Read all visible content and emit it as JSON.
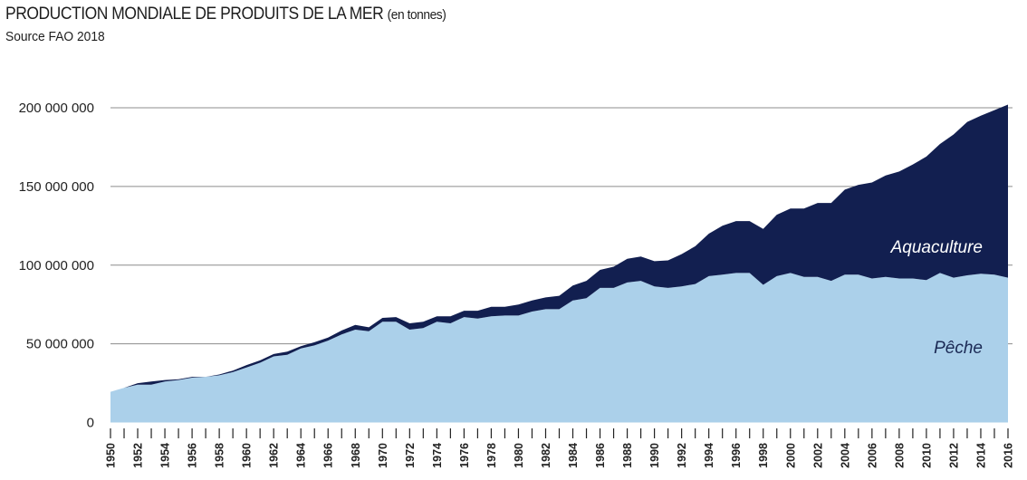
{
  "header": {
    "title": "PRODUCTION MONDIALE DE PRODUITS DE LA MER",
    "title_unit": "(en tonnes)",
    "subtitle": "Source FAO 2018"
  },
  "chart_data": {
    "type": "area",
    "stacked": true,
    "title": "PRODUCTION MONDIALE DE PRODUITS DE LA MER (en tonnes)",
    "subtitle": "Source FAO 2018",
    "xlabel": "",
    "ylabel": "",
    "ylim": [
      0,
      200000000
    ],
    "xlim": [
      1950,
      2016
    ],
    "yticks": [
      0,
      50000000,
      100000000,
      150000000,
      200000000
    ],
    "ytick_labels": [
      "0",
      "50 000 000",
      "100 000 000",
      "150 000 000",
      "200 000 000"
    ],
    "grid": "horizontal",
    "legend": "inline-labels",
    "x": [
      1950,
      1951,
      1952,
      1953,
      1954,
      1955,
      1956,
      1957,
      1958,
      1959,
      1960,
      1961,
      1962,
      1963,
      1964,
      1965,
      1966,
      1967,
      1968,
      1969,
      1970,
      1971,
      1972,
      1973,
      1974,
      1975,
      1976,
      1977,
      1978,
      1979,
      1980,
      1981,
      1982,
      1983,
      1984,
      1985,
      1986,
      1987,
      1988,
      1989,
      1990,
      1991,
      1992,
      1993,
      1994,
      1995,
      1996,
      1997,
      1998,
      1999,
      2000,
      2001,
      2002,
      2003,
      2004,
      2005,
      2006,
      2007,
      2008,
      2009,
      2010,
      2011,
      2012,
      2013,
      2014,
      2015,
      2016
    ],
    "xtick_labels": [
      "1950",
      "1952",
      "1954",
      "1956",
      "1958",
      "1960",
      "1962",
      "1964",
      "1966",
      "1968",
      "1970",
      "1972",
      "1974",
      "1976",
      "1978",
      "1980",
      "1982",
      "1984",
      "1986",
      "1988",
      "1990",
      "1992",
      "1994",
      "1996",
      "1998",
      "2000",
      "2002",
      "2004",
      "2006",
      "2008",
      "2010",
      "2012",
      "2014",
      "2016"
    ],
    "series": [
      {
        "name": "Pêche",
        "color": "#abd0ea",
        "label_color": "#1b2a55",
        "values": [
          19500000,
          22000000,
          24000000,
          24000000,
          26000000,
          27000000,
          28500000,
          29000000,
          30000000,
          32000000,
          35000000,
          38000000,
          42000000,
          43000000,
          47000000,
          49000000,
          52000000,
          56000000,
          59000000,
          58000000,
          64000000,
          64000000,
          59000000,
          60000000,
          64000000,
          63000000,
          67000000,
          66000000,
          67500000,
          68000000,
          68000000,
          70500000,
          72000000,
          72000000,
          77500000,
          79000000,
          85500000,
          85500000,
          89000000,
          90000000,
          86500000,
          85500000,
          86500000,
          88000000,
          93000000,
          94000000,
          95000000,
          95000000,
          87500000,
          93000000,
          95000000,
          92500000,
          92500000,
          90000000,
          94000000,
          94000000,
          91500000,
          92500000,
          91500000,
          91500000,
          90500000,
          95000000,
          92000000,
          93500000,
          94500000,
          94000000,
          92000000
        ]
      },
      {
        "name": "Aquaculture",
        "color": "#121f50",
        "label_color": "#ffffff",
        "values": [
          0,
          0,
          1000000,
          2000000,
          1000000,
          500000,
          500000,
          0,
          500000,
          1000000,
          1500000,
          1500000,
          1500000,
          2000000,
          1500000,
          2000000,
          2000000,
          2500000,
          3000000,
          2500000,
          2500000,
          3000000,
          4000000,
          4000000,
          3500000,
          4500000,
          4000000,
          5000000,
          6000000,
          5500000,
          7000000,
          7000000,
          7500000,
          8500000,
          9500000,
          11000000,
          11500000,
          13500000,
          15000000,
          15500000,
          16000000,
          17500000,
          20500000,
          24000000,
          27000000,
          31000000,
          33000000,
          33000000,
          35500000,
          39000000,
          41000000,
          43500000,
          47000000,
          49500000,
          54000000,
          57000000,
          61000000,
          64500000,
          68000000,
          72500000,
          78500000,
          82000000,
          91000000,
          97500000,
          100500000,
          104500000,
          110000000
        ]
      }
    ]
  }
}
